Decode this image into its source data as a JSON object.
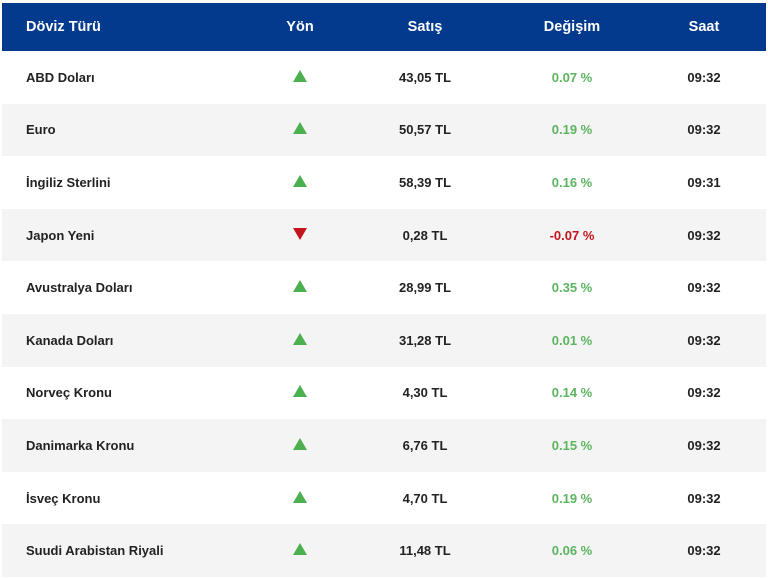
{
  "headers": {
    "currency": "Döviz Türü",
    "direction": "Yön",
    "sell": "Satış",
    "change": "Değişim",
    "time": "Saat"
  },
  "colors": {
    "header_bg": "#033a8e",
    "up": "#4caf50",
    "down": "#c3161c"
  },
  "rows": [
    {
      "name": "ABD Doları",
      "direction": "up",
      "sell": "43,05 TL",
      "change": "0.07 %",
      "time": "09:32"
    },
    {
      "name": "Euro",
      "direction": "up",
      "sell": "50,57 TL",
      "change": "0.19 %",
      "time": "09:32"
    },
    {
      "name": "İngiliz Sterlini",
      "direction": "up",
      "sell": "58,39 TL",
      "change": "0.16 %",
      "time": "09:31"
    },
    {
      "name": "Japon Yeni",
      "direction": "down",
      "sell": "0,28 TL",
      "change": "-0.07 %",
      "time": "09:32"
    },
    {
      "name": "Avustralya Doları",
      "direction": "up",
      "sell": "28,99 TL",
      "change": "0.35 %",
      "time": "09:32"
    },
    {
      "name": "Kanada Doları",
      "direction": "up",
      "sell": "31,28 TL",
      "change": "0.01 %",
      "time": "09:32"
    },
    {
      "name": "Norveç Kronu",
      "direction": "up",
      "sell": "4,30 TL",
      "change": "0.14 %",
      "time": "09:32"
    },
    {
      "name": "Danimarka Kronu",
      "direction": "up",
      "sell": "6,76 TL",
      "change": "0.15 %",
      "time": "09:32"
    },
    {
      "name": "İsveç Kronu",
      "direction": "up",
      "sell": "4,70 TL",
      "change": "0.19 %",
      "time": "09:32"
    },
    {
      "name": "Suudi Arabistan Riyali",
      "direction": "up",
      "sell": "11,48 TL",
      "change": "0.06 %",
      "time": "09:32"
    }
  ]
}
